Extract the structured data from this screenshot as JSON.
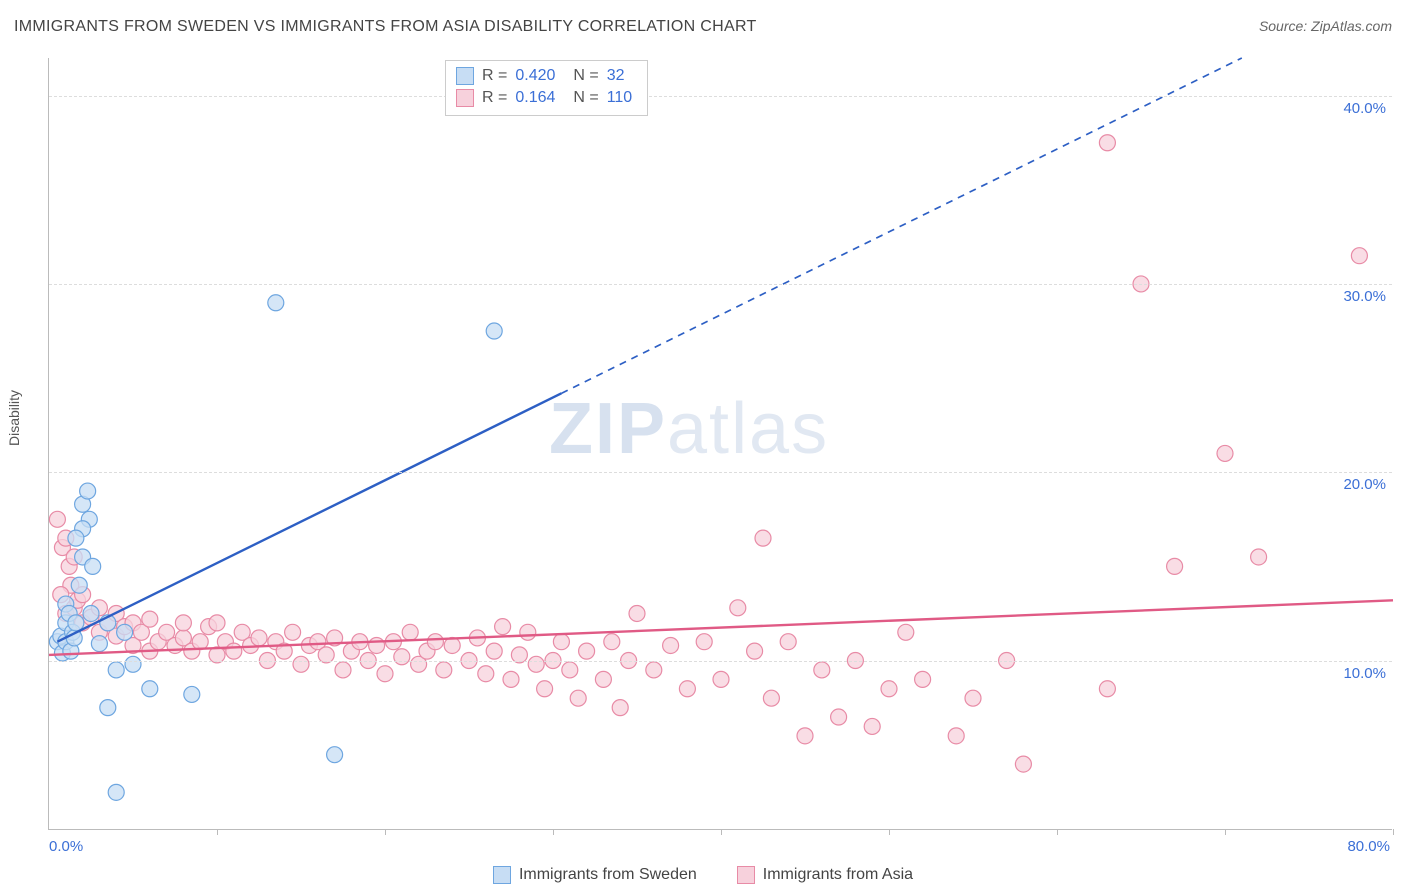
{
  "title": "IMMIGRANTS FROM SWEDEN VS IMMIGRANTS FROM ASIA DISABILITY CORRELATION CHART",
  "source": "Source: ZipAtlas.com",
  "ylabel": "Disability",
  "watermark_bold": "ZIP",
  "watermark_rest": "atlas",
  "chart": {
    "type": "scatter",
    "background_color": "#ffffff",
    "grid_color": "#dddddd",
    "axis_color": "#bbbbbb",
    "axis_value_color": "#3b6fd6",
    "xlim": [
      0,
      80
    ],
    "ylim": [
      1,
      42
    ],
    "x_ticks_count": 9,
    "y_gridlines": [
      10,
      20,
      30,
      40
    ],
    "y_tick_labels": [
      "10.0%",
      "20.0%",
      "30.0%",
      "40.0%"
    ],
    "x_end_label": "80.0%",
    "x_start_label": "0.0%",
    "marker_radius": 8,
    "marker_stroke_width": 1.2,
    "trend_line_width": 2.4,
    "label_fontsize": 14,
    "axis_value_fontsize": 15,
    "series": [
      {
        "id": "sweden",
        "label": "Immigrants from Sweden",
        "fill": "#c7ddf4",
        "stroke": "#6ea6e0",
        "r_value": "0.420",
        "n_value": "32",
        "trend": {
          "x1": 0.5,
          "y1": 11.0,
          "x2": 71,
          "y2": 42,
          "solid_break_x": 30.5,
          "color": "#2d5fc4"
        },
        "points": [
          [
            0.5,
            11.0
          ],
          [
            0.7,
            11.3
          ],
          [
            0.8,
            10.4
          ],
          [
            1.0,
            13.0
          ],
          [
            1.0,
            12.0
          ],
          [
            1.0,
            11.0
          ],
          [
            1.2,
            12.5
          ],
          [
            1.3,
            10.5
          ],
          [
            1.4,
            11.5
          ],
          [
            1.5,
            11.2
          ],
          [
            1.6,
            12.0
          ],
          [
            2.0,
            18.3
          ],
          [
            2.3,
            19.0
          ],
          [
            2.0,
            15.5
          ],
          [
            2.4,
            17.5
          ],
          [
            2.6,
            15.0
          ],
          [
            2.0,
            17.0
          ],
          [
            1.8,
            14.0
          ],
          [
            1.6,
            16.5
          ],
          [
            2.5,
            12.5
          ],
          [
            3.0,
            10.9
          ],
          [
            3.5,
            12.0
          ],
          [
            4.0,
            9.5
          ],
          [
            4.5,
            11.5
          ],
          [
            5.0,
            9.8
          ],
          [
            6.0,
            8.5
          ],
          [
            3.5,
            7.5
          ],
          [
            4.0,
            3.0
          ],
          [
            8.5,
            8.2
          ],
          [
            13.5,
            29.0
          ],
          [
            17.0,
            5.0
          ],
          [
            26.5,
            27.5
          ]
        ]
      },
      {
        "id": "asia",
        "label": "Immigrants from Asia",
        "fill": "#f7d1dc",
        "stroke": "#e88ba6",
        "r_value": "0.164",
        "n_value": "110",
        "trend": {
          "x1": 0,
          "y1": 10.3,
          "x2": 80,
          "y2": 13.2,
          "solid_break_x": 80,
          "color": "#e05a85"
        },
        "points": [
          [
            0.5,
            17.5
          ],
          [
            0.8,
            16.0
          ],
          [
            1.0,
            16.5
          ],
          [
            1.2,
            15.0
          ],
          [
            1.3,
            14.0
          ],
          [
            1.5,
            15.5
          ],
          [
            0.7,
            13.5
          ],
          [
            1.0,
            12.5
          ],
          [
            1.5,
            12.8
          ],
          [
            1.7,
            13.2
          ],
          [
            2.0,
            13.5
          ],
          [
            2.0,
            12.0
          ],
          [
            2.5,
            12.3
          ],
          [
            3.0,
            12.8
          ],
          [
            3.0,
            11.5
          ],
          [
            3.5,
            12.0
          ],
          [
            4.0,
            12.5
          ],
          [
            4.0,
            11.3
          ],
          [
            4.5,
            11.8
          ],
          [
            5.0,
            12.0
          ],
          [
            5.0,
            10.8
          ],
          [
            5.5,
            11.5
          ],
          [
            6.0,
            12.2
          ],
          [
            6.0,
            10.5
          ],
          [
            6.5,
            11.0
          ],
          [
            7.0,
            11.5
          ],
          [
            7.5,
            10.8
          ],
          [
            8.0,
            11.2
          ],
          [
            8.0,
            12.0
          ],
          [
            8.5,
            10.5
          ],
          [
            9.0,
            11.0
          ],
          [
            9.5,
            11.8
          ],
          [
            10.0,
            10.3
          ],
          [
            10.0,
            12.0
          ],
          [
            10.5,
            11.0
          ],
          [
            11.0,
            10.5
          ],
          [
            11.5,
            11.5
          ],
          [
            12.0,
            10.8
          ],
          [
            12.5,
            11.2
          ],
          [
            13.0,
            10.0
          ],
          [
            13.5,
            11.0
          ],
          [
            14.0,
            10.5
          ],
          [
            14.5,
            11.5
          ],
          [
            15.0,
            9.8
          ],
          [
            15.5,
            10.8
          ],
          [
            16.0,
            11.0
          ],
          [
            16.5,
            10.3
          ],
          [
            17.0,
            11.2
          ],
          [
            17.5,
            9.5
          ],
          [
            18.0,
            10.5
          ],
          [
            18.5,
            11.0
          ],
          [
            19.0,
            10.0
          ],
          [
            19.5,
            10.8
          ],
          [
            20.0,
            9.3
          ],
          [
            20.5,
            11.0
          ],
          [
            21.0,
            10.2
          ],
          [
            21.5,
            11.5
          ],
          [
            22.0,
            9.8
          ],
          [
            22.5,
            10.5
          ],
          [
            23.0,
            11.0
          ],
          [
            23.5,
            9.5
          ],
          [
            24.0,
            10.8
          ],
          [
            25.0,
            10.0
          ],
          [
            25.5,
            11.2
          ],
          [
            26.0,
            9.3
          ],
          [
            26.5,
            10.5
          ],
          [
            27.0,
            11.8
          ],
          [
            27.5,
            9.0
          ],
          [
            28.0,
            10.3
          ],
          [
            28.5,
            11.5
          ],
          [
            29.0,
            9.8
          ],
          [
            29.5,
            8.5
          ],
          [
            30.0,
            10.0
          ],
          [
            30.5,
            11.0
          ],
          [
            31.0,
            9.5
          ],
          [
            31.5,
            8.0
          ],
          [
            32.0,
            10.5
          ],
          [
            33.0,
            9.0
          ],
          [
            33.5,
            11.0
          ],
          [
            34.0,
            7.5
          ],
          [
            34.5,
            10.0
          ],
          [
            35.0,
            12.5
          ],
          [
            36.0,
            9.5
          ],
          [
            37.0,
            10.8
          ],
          [
            38.0,
            8.5
          ],
          [
            39.0,
            11.0
          ],
          [
            40.0,
            9.0
          ],
          [
            41.0,
            12.8
          ],
          [
            42.0,
            10.5
          ],
          [
            42.5,
            16.5
          ],
          [
            43.0,
            8.0
          ],
          [
            44.0,
            11.0
          ],
          [
            45.0,
            6.0
          ],
          [
            46.0,
            9.5
          ],
          [
            47.0,
            7.0
          ],
          [
            48.0,
            10.0
          ],
          [
            49.0,
            6.5
          ],
          [
            50.0,
            8.5
          ],
          [
            51.0,
            11.5
          ],
          [
            52.0,
            9.0
          ],
          [
            54.0,
            6.0
          ],
          [
            55.0,
            8.0
          ],
          [
            57.0,
            10.0
          ],
          [
            58.0,
            4.5
          ],
          [
            63.0,
            8.5
          ],
          [
            63.0,
            37.5
          ],
          [
            65.0,
            30.0
          ],
          [
            67.0,
            15.0
          ],
          [
            70.0,
            21.0
          ],
          [
            72.0,
            15.5
          ],
          [
            78.0,
            31.5
          ]
        ]
      }
    ]
  },
  "stats_box": {
    "r_label": "R =",
    "n_label": "N ="
  },
  "legend": {
    "sweden": "Immigrants from Sweden",
    "asia": "Immigrants from Asia"
  }
}
